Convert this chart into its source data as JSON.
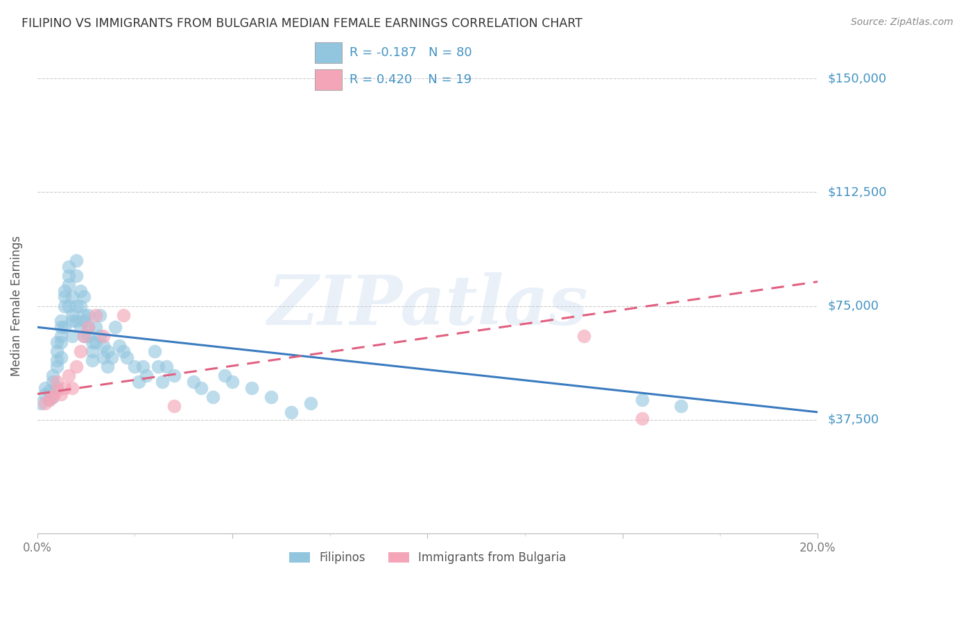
{
  "title": "FILIPINO VS IMMIGRANTS FROM BULGARIA MEDIAN FEMALE EARNINGS CORRELATION CHART",
  "source": "Source: ZipAtlas.com",
  "ylabel": "Median Female Earnings",
  "yticks": [
    0,
    37500,
    75000,
    112500,
    150000
  ],
  "ytick_labels": [
    "",
    "$37,500",
    "$75,000",
    "$112,500",
    "$150,000"
  ],
  "xlim": [
    0.0,
    0.2
  ],
  "ylim": [
    0,
    150000
  ],
  "blue_color": "#92c5de",
  "pink_color": "#f4a6b8",
  "blue_line_color": "#3a7bbf",
  "pink_line_color": "#e06080",
  "axis_color": "#4393c3",
  "title_color": "#333333",
  "source_color": "#888888",
  "watermark": "ZIPatlas",
  "legend1_R": "-0.187",
  "legend1_N": "80",
  "legend2_R": "0.420",
  "legend2_N": "19",
  "legend1_label": "Filipinos",
  "legend2_label": "Immigrants from Bulgaria",
  "blue_line_x0": 0.0,
  "blue_line_y0": 68000,
  "blue_line_x1": 0.2,
  "blue_line_y1": 40000,
  "pink_line_x0": 0.0,
  "pink_line_y0": 46000,
  "pink_line_x1": 0.2,
  "pink_line_y1": 83000,
  "blue_x": [
    0.001,
    0.002,
    0.002,
    0.003,
    0.003,
    0.004,
    0.004,
    0.004,
    0.005,
    0.005,
    0.005,
    0.005,
    0.005,
    0.006,
    0.006,
    0.006,
    0.006,
    0.006,
    0.007,
    0.007,
    0.007,
    0.007,
    0.008,
    0.008,
    0.008,
    0.008,
    0.009,
    0.009,
    0.009,
    0.009,
    0.01,
    0.01,
    0.01,
    0.01,
    0.011,
    0.011,
    0.011,
    0.012,
    0.012,
    0.012,
    0.012,
    0.013,
    0.013,
    0.013,
    0.014,
    0.014,
    0.014,
    0.015,
    0.015,
    0.016,
    0.016,
    0.017,
    0.017,
    0.018,
    0.018,
    0.019,
    0.02,
    0.021,
    0.022,
    0.023,
    0.025,
    0.026,
    0.027,
    0.028,
    0.03,
    0.031,
    0.032,
    0.033,
    0.035,
    0.04,
    0.042,
    0.045,
    0.048,
    0.05,
    0.055,
    0.06,
    0.065,
    0.07,
    0.155,
    0.165
  ],
  "blue_y": [
    43000,
    46000,
    48000,
    44000,
    47000,
    50000,
    52000,
    45000,
    60000,
    63000,
    55000,
    57000,
    48000,
    65000,
    68000,
    63000,
    70000,
    58000,
    75000,
    80000,
    78000,
    68000,
    85000,
    88000,
    82000,
    75000,
    72000,
    78000,
    70000,
    65000,
    90000,
    85000,
    75000,
    70000,
    80000,
    75000,
    68000,
    72000,
    78000,
    70000,
    65000,
    68000,
    72000,
    65000,
    60000,
    63000,
    57000,
    68000,
    63000,
    72000,
    65000,
    58000,
    62000,
    55000,
    60000,
    58000,
    68000,
    62000,
    60000,
    58000,
    55000,
    50000,
    55000,
    52000,
    60000,
    55000,
    50000,
    55000,
    52000,
    50000,
    48000,
    45000,
    52000,
    50000,
    48000,
    45000,
    40000,
    43000,
    44000,
    42000
  ],
  "pink_x": [
    0.002,
    0.003,
    0.004,
    0.005,
    0.005,
    0.006,
    0.007,
    0.008,
    0.009,
    0.01,
    0.011,
    0.012,
    0.013,
    0.015,
    0.017,
    0.022,
    0.035,
    0.14,
    0.155
  ],
  "pink_y": [
    43000,
    44000,
    45000,
    47000,
    50000,
    46000,
    48000,
    52000,
    48000,
    55000,
    60000,
    65000,
    68000,
    72000,
    65000,
    72000,
    42000,
    65000,
    38000
  ]
}
